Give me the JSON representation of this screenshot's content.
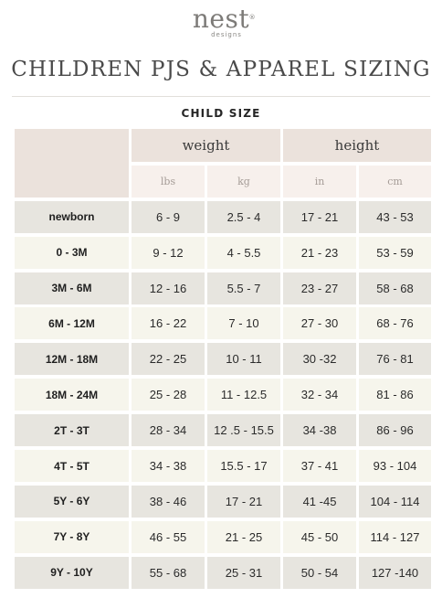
{
  "brand": {
    "name": "nest",
    "registered": "®",
    "sub": "designs"
  },
  "title": "CHILDREN PJS & APPAREL SIZING",
  "subtitle": "CHILD SIZE",
  "table": {
    "groups": [
      "weight",
      "height"
    ],
    "units": [
      "lbs",
      "kg",
      "in",
      "cm"
    ],
    "rows": [
      {
        "size": "newborn",
        "lbs": "6 - 9",
        "kg": "2.5 - 4",
        "in": "17 - 21",
        "cm": "43 - 53"
      },
      {
        "size": "0 - 3M",
        "lbs": "9 - 12",
        "kg": "4 - 5.5",
        "in": "21 - 23",
        "cm": "53 - 59"
      },
      {
        "size": "3M - 6M",
        "lbs": "12 - 16",
        "kg": "5.5 - 7",
        "in": "23 - 27",
        "cm": "58 - 68"
      },
      {
        "size": "6M - 12M",
        "lbs": "16 - 22",
        "kg": "7 - 10",
        "in": "27 - 30",
        "cm": "68 - 76"
      },
      {
        "size": "12M - 18M",
        "lbs": "22 - 25",
        "kg": "10 - 11",
        "in": "30 -32",
        "cm": "76 - 81"
      },
      {
        "size": "18M - 24M",
        "lbs": "25 - 28",
        "kg": "11 - 12.5",
        "in": "32 - 34",
        "cm": "81 - 86"
      },
      {
        "size": "2T - 3T",
        "lbs": "28 - 34",
        "kg": "12 .5 - 15.5",
        "in": "34 -38",
        "cm": "86 - 96"
      },
      {
        "size": "4T - 5T",
        "lbs": "34 - 38",
        "kg": "15.5 - 17",
        "in": "37 - 41",
        "cm": "93 - 104"
      },
      {
        "size": "5Y - 6Y",
        "lbs": "38 - 46",
        "kg": "17 - 21",
        "in": "41 -45",
        "cm": "104 - 114"
      },
      {
        "size": "7Y - 8Y",
        "lbs": "46 - 55",
        "kg": "21 - 25",
        "in": "45 - 50",
        "cm": "114 - 127"
      },
      {
        "size": "9Y - 10Y",
        "lbs": "55 - 68",
        "kg": "25 - 31",
        "in": "50 - 54",
        "cm": "127 -140"
      }
    ]
  }
}
